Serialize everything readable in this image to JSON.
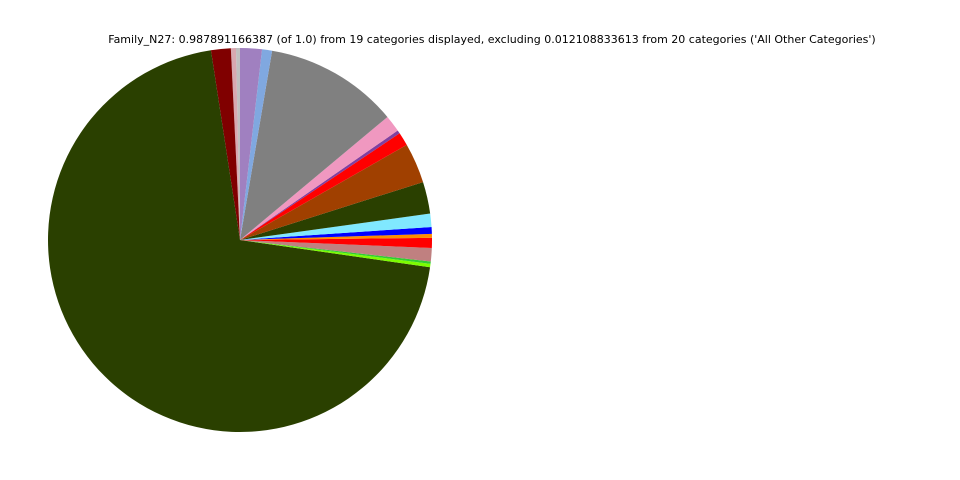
{
  "chart_data": {
    "type": "pie",
    "title": "Family_N27: 0.987891166387 (of 1.0) from 19 categories displayed, excluding 0.012108833613 from 20 categories ('All Other Categories')",
    "values": [
      0.0033,
      0.0042,
      0.0164,
      0.694,
      0.0028,
      0.0019,
      0.0111,
      0.0083,
      0.0033,
      0.0056,
      0.0111,
      0.0264,
      0.0333,
      0.0111,
      0.0028,
      0.0139,
      0.1111,
      0.0083,
      0.0181
    ],
    "colors": [
      "#c0c0c0",
      "#d8a8b0",
      "#800000",
      "#2a4000",
      "#7cfc00",
      "#32cd32",
      "#c08080",
      "#ff0000",
      "#ff8c00",
      "#0000ff",
      "#80e8ff",
      "#2a4000",
      "#a04000",
      "#ff0000",
      "#8040a0",
      "#f098c0",
      "#808080",
      "#80a8e0",
      "#a080c0"
    ],
    "start_angle": 90,
    "counterclockwise": true
  }
}
